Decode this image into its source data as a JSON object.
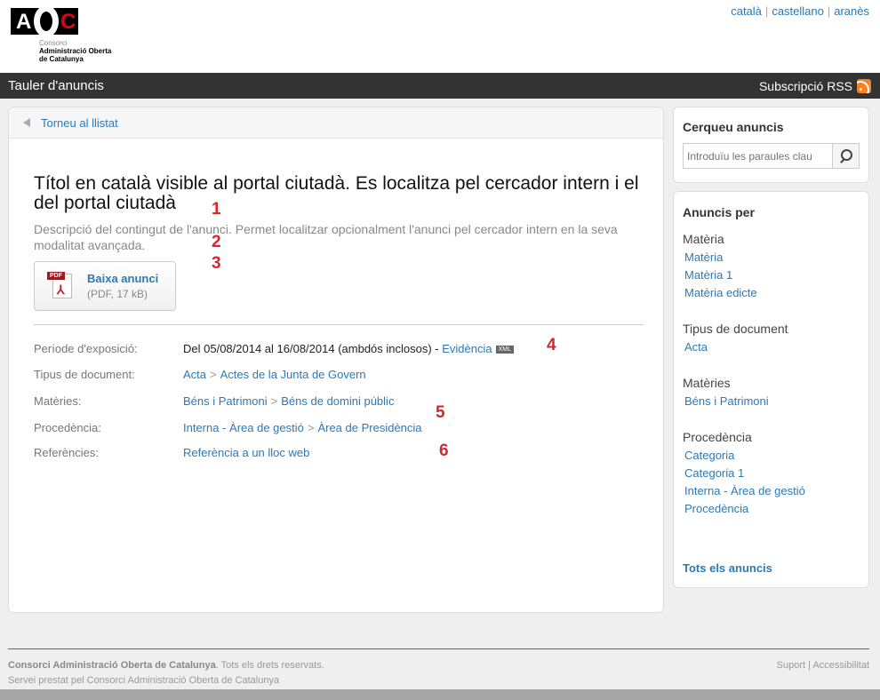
{
  "header": {
    "logo_text": "AOC",
    "logo_lines": [
      "Consorci",
      "Administració Oberta",
      "de Catalunya"
    ],
    "languages": [
      "català",
      "castellano",
      "aranès"
    ]
  },
  "bar": {
    "title": "Tauler d'anuncis",
    "rss": "Subscripció RSS"
  },
  "main": {
    "back": "Torneu al llistat",
    "title": "Títol en català visible al portal ciutadà. Es localitza pel cercador intern i el del portal ciutadà",
    "description": "Descripció del contingut de l'anunci. Permet localitzar opcionalment l'anunci pel cercador intern en la seva modalitat avançada.",
    "download": {
      "label": "Baixa anunci",
      "size": "(PDF, 17 kB)",
      "icon": "pdf-icon"
    },
    "annotations": [
      "1",
      "2",
      "3",
      "4",
      "5",
      "6"
    ],
    "fields": {
      "period": {
        "label": "Període d'exposició:",
        "value": "Del 05/08/2014 al 16/08/2014 (ambdós inclosos) - ",
        "link": "Evidència",
        "badge": "XML"
      },
      "doc_type": {
        "label": "Tipus de document:",
        "links": [
          "Acta",
          "Actes de la Junta de Govern"
        ]
      },
      "matters": {
        "label": "Matèries:",
        "links": [
          "Béns i Patrimoni",
          "Béns de domini públic"
        ]
      },
      "origin": {
        "label": "Procedència:",
        "links": [
          "Interna - Àrea de gestió",
          "Àrea de Presidència"
        ]
      },
      "refs": {
        "label": "Referències:",
        "links": [
          "Referència a un lloc web"
        ]
      }
    }
  },
  "sidebar": {
    "search_title": "Cerqueu anuncis",
    "search_placeholder": "Introduïu les paraules clau",
    "by_title": "Anuncis per",
    "groups": [
      {
        "title": "Matèria",
        "items": [
          "Matèria",
          "Matèria 1",
          "Matèria edicte"
        ]
      },
      {
        "title": "Tipus de document",
        "items": [
          "Acta"
        ]
      },
      {
        "title": "Matèries",
        "items": [
          "Béns i Patrimoni"
        ]
      },
      {
        "title": "Procedència",
        "items": [
          "Categoria",
          "Categoria 1",
          "Interna - Àrea de gestió",
          "Procedència"
        ]
      }
    ],
    "all": "Tots els anuncis"
  },
  "footer": {
    "org": "Consorci Administració Oberta de Catalunya",
    "rights": ". Tots els drets reservats.",
    "service": "Servei prestat pel Consorci Administració Oberta de Catalunya",
    "links": [
      "Suport",
      "Accessibilitat"
    ]
  },
  "colors": {
    "link": "#2a7ab8",
    "bar": "#333333",
    "annotation": "#d7262b",
    "brand_red": "#e3001b"
  }
}
